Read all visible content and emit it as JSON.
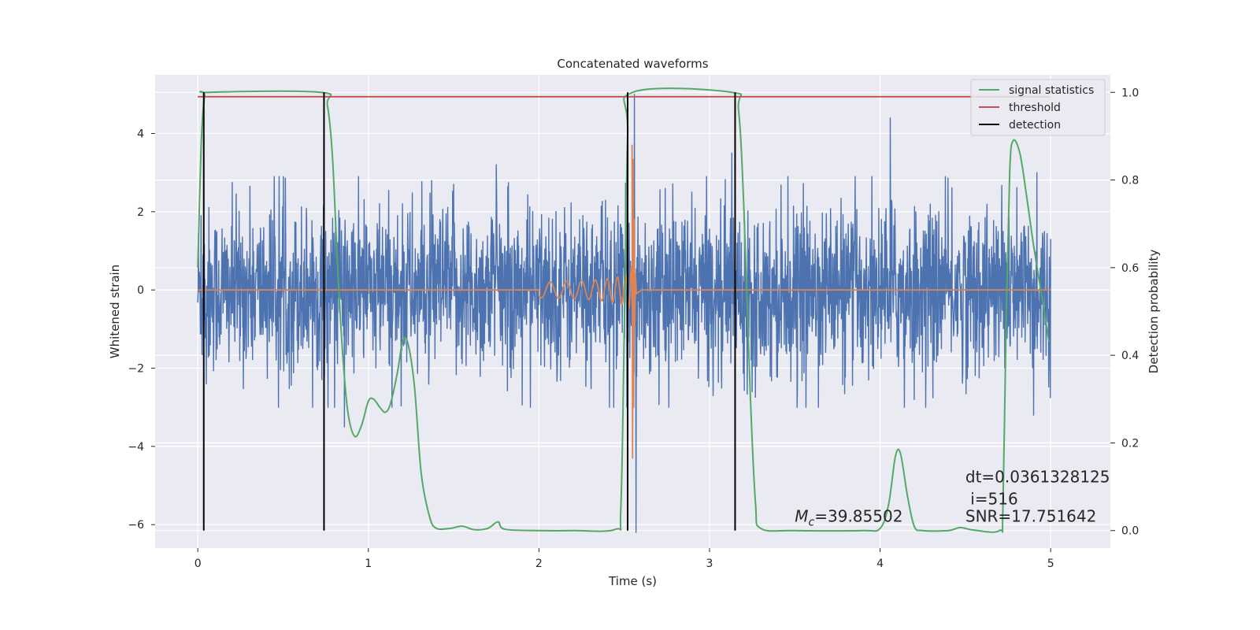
{
  "chart_data": {
    "type": "line",
    "title": "Concatenated waveforms",
    "xlabel": "Time (s)",
    "ylabel": "Whitened strain",
    "y2label": "Detection probability",
    "xlim": [
      -0.25,
      5.35
    ],
    "ylim": [
      -6.6,
      5.5
    ],
    "y2lim": [
      -0.04,
      1.04
    ],
    "xticks": [
      "0",
      "1",
      "2",
      "3",
      "4",
      "5"
    ],
    "xtick_values": [
      0,
      1,
      2,
      3,
      4,
      5
    ],
    "yticks": [
      "−6",
      "−4",
      "−2",
      "0",
      "2",
      "4"
    ],
    "ytick_values": [
      -6,
      -4,
      -2,
      0,
      2,
      4
    ],
    "y2ticks": [
      "0.0",
      "0.2",
      "0.4",
      "0.6",
      "0.8",
      "1.0"
    ],
    "y2tick_values": [
      0.0,
      0.2,
      0.4,
      0.6,
      0.8,
      1.0
    ],
    "grid": true,
    "legend_position": "top-right",
    "series": [
      {
        "name": "",
        "kind": "whitened-strain-noise",
        "axis": "left",
        "color": "#4c72b0",
        "x_start": 0,
        "x_end": 5,
        "typical_amplitude": 1.3,
        "peak_values": [
          [
            0.02,
            1.9
          ],
          [
            0.05,
            -2.4
          ],
          [
            0.86,
            -3.5
          ],
          [
            1.5,
            2.7
          ],
          [
            1.75,
            3.2
          ],
          [
            2.56,
            5.0
          ],
          [
            2.57,
            -6.2
          ],
          [
            3.13,
            3.5
          ],
          [
            4.06,
            4.4
          ],
          [
            4.2,
            -2.8
          ],
          [
            4.92,
            3.0
          ],
          [
            4.9,
            -3.2
          ]
        ]
      },
      {
        "name": "",
        "kind": "injected-chirp",
        "axis": "left",
        "color": "#dd8452",
        "x_start": 2.0,
        "x_merger": 2.55,
        "x_end": 2.6,
        "peak_amplitude": 3.7,
        "min_amplitude": -4.3,
        "onset_amplitude": 0.2
      },
      {
        "name": "signal statistics",
        "axis": "right",
        "color": "#55a868",
        "points": [
          [
            0.0,
            0.6
          ],
          [
            0.02,
            0.88
          ],
          [
            0.04,
            0.99
          ],
          [
            0.07,
            1.0
          ],
          [
            0.72,
            1.0
          ],
          [
            0.76,
            0.97
          ],
          [
            0.79,
            0.85
          ],
          [
            0.82,
            0.6
          ],
          [
            0.85,
            0.4
          ],
          [
            0.88,
            0.27
          ],
          [
            0.92,
            0.215
          ],
          [
            0.96,
            0.24
          ],
          [
            1.0,
            0.295
          ],
          [
            1.03,
            0.3
          ],
          [
            1.07,
            0.28
          ],
          [
            1.1,
            0.27
          ],
          [
            1.13,
            0.29
          ],
          [
            1.17,
            0.36
          ],
          [
            1.2,
            0.43
          ],
          [
            1.23,
            0.43
          ],
          [
            1.27,
            0.33
          ],
          [
            1.31,
            0.13
          ],
          [
            1.36,
            0.03
          ],
          [
            1.4,
            0.005
          ],
          [
            1.48,
            0.005
          ],
          [
            1.55,
            0.01
          ],
          [
            1.62,
            0.002
          ],
          [
            1.7,
            0.005
          ],
          [
            1.76,
            0.02
          ],
          [
            1.8,
            0.003
          ],
          [
            2.0,
            0.0
          ],
          [
            2.2,
            0.0
          ],
          [
            2.45,
            0.003
          ],
          [
            2.48,
            0.05
          ],
          [
            2.5,
            0.45
          ],
          [
            2.52,
            0.9
          ],
          [
            2.55,
            1.0
          ],
          [
            3.13,
            1.0
          ],
          [
            3.17,
            0.96
          ],
          [
            3.2,
            0.75
          ],
          [
            3.24,
            0.3
          ],
          [
            3.27,
            0.06
          ],
          [
            3.3,
            0.005
          ],
          [
            3.5,
            0.0
          ],
          [
            3.9,
            0.0
          ],
          [
            4.0,
            0.005
          ],
          [
            4.05,
            0.06
          ],
          [
            4.09,
            0.17
          ],
          [
            4.12,
            0.175
          ],
          [
            4.16,
            0.08
          ],
          [
            4.2,
            0.01
          ],
          [
            4.25,
            0.0
          ],
          [
            4.4,
            0.0
          ],
          [
            4.47,
            0.007
          ],
          [
            4.55,
            0.001
          ],
          [
            4.7,
            0.0
          ],
          [
            4.72,
            0.05
          ],
          [
            4.74,
            0.5
          ],
          [
            4.76,
            0.82
          ],
          [
            4.78,
            0.89
          ],
          [
            4.82,
            0.86
          ],
          [
            4.86,
            0.76
          ],
          [
            4.9,
            0.65
          ],
          [
            4.95,
            0.53
          ],
          [
            4.99,
            0.43
          ]
        ]
      },
      {
        "name": "threshold",
        "axis": "right",
        "color": "#c44e52",
        "value": 0.99,
        "x_start": 0,
        "x_end": 5
      },
      {
        "name": "detection",
        "axis": "right",
        "color": "#000000",
        "x_values": [
          0.035,
          0.74,
          2.52,
          3.15
        ],
        "y_range": [
          0.0,
          1.0
        ]
      }
    ],
    "annotations": [
      {
        "text": "dt=0.0361328125",
        "x": 4.5,
        "y": 0.11
      },
      {
        "text": " i=516",
        "x": 4.5,
        "y": 0.06
      },
      {
        "text": "SNR=17.751642",
        "x": 4.5,
        "y": 0.02
      },
      {
        "text_math_symbol": "M",
        "text_math_sub": "c",
        "text_rest": "=39.85502",
        "x": 3.5,
        "y": 0.02
      }
    ]
  }
}
